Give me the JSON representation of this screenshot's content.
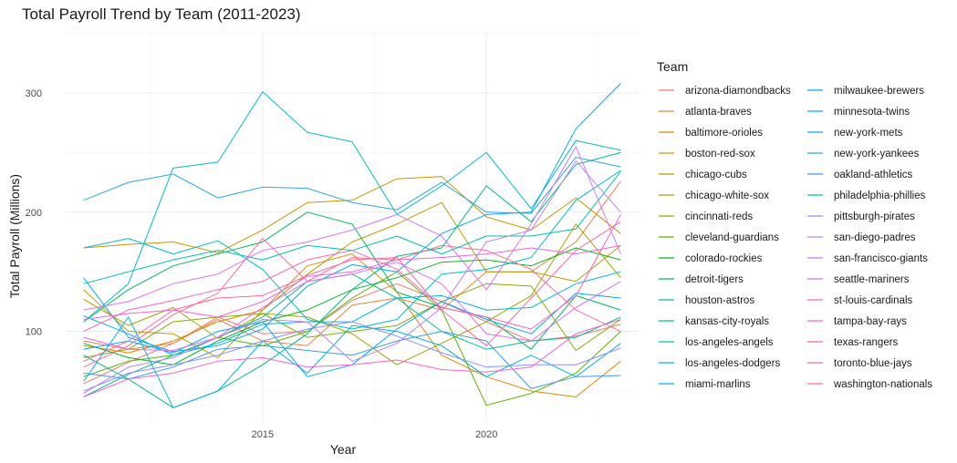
{
  "chart_data": {
    "type": "line",
    "title": "Total Payroll Trend by Team (2011-2023)",
    "xlabel": "Year",
    "ylabel": "Total Payroll (Millions)",
    "xlim": [
      2010.6,
      2023.4
    ],
    "ylim": [
      24,
      352
    ],
    "x_ticks": [
      2015,
      2020
    ],
    "y_ticks": [
      100,
      200,
      300
    ],
    "grid": true,
    "legend_title": "Team",
    "legend_position": "right",
    "x": [
      2011,
      2012,
      2013,
      2014,
      2015,
      2016,
      2017,
      2018,
      2019,
      2020,
      2021,
      2022,
      2023
    ],
    "series": [
      {
        "name": "arizona-diamondbacks",
        "color": "#F8766D",
        "values": [
          56,
          74,
          90,
          112,
          98,
          100,
          126,
          140,
          125,
          108,
          92,
          96,
          106
        ]
      },
      {
        "name": "atlanta-braves",
        "color": "#EE8045",
        "values": [
          92,
          85,
          90,
          110,
          92,
          88,
          122,
          128,
          118,
          150,
          150,
          175,
          226
        ]
      },
      {
        "name": "baltimore-orioles",
        "color": "#E08B00",
        "values": [
          88,
          82,
          92,
          108,
          118,
          155,
          165,
          133,
          80,
          62,
          50,
          45,
          75
        ]
      },
      {
        "name": "boston-red-sox",
        "color": "#CF9400",
        "values": [
          170,
          173,
          175,
          166,
          185,
          208,
          210,
          228,
          230,
          196,
          185,
          212,
          182
        ]
      },
      {
        "name": "chicago-cubs",
        "color": "#BB9D00",
        "values": [
          135,
          100,
          98,
          78,
          118,
          148,
          175,
          190,
          208,
          150,
          150,
          142,
          172
        ]
      },
      {
        "name": "chicago-white-sox",
        "color": "#A3A500",
        "values": [
          127,
          105,
          120,
          94,
          115,
          112,
          98,
          72,
          90,
          108,
          130,
          190,
          145
        ]
      },
      {
        "name": "cincinnati-reds",
        "color": "#85AD00",
        "values": [
          78,
          85,
          108,
          112,
          115,
          95,
          100,
          105,
          125,
          140,
          138,
          84,
          110
        ]
      },
      {
        "name": "cleveland-guardians",
        "color": "#5BB300",
        "values": [
          62,
          75,
          80,
          95,
          88,
          100,
          128,
          150,
          118,
          38,
          48,
          65,
          100
        ]
      },
      {
        "name": "colorado-rockies",
        "color": "#00B81F",
        "values": [
          90,
          78,
          72,
          92,
          108,
          118,
          135,
          145,
          158,
          160,
          155,
          170,
          160
        ]
      },
      {
        "name": "detroit-tigers",
        "color": "#00BC56",
        "values": [
          108,
          135,
          155,
          165,
          175,
          200,
          190,
          133,
          120,
          112,
          85,
          130,
          118
        ]
      },
      {
        "name": "houston-astros",
        "color": "#00BF7D",
        "values": [
          80,
          60,
          36,
          50,
          72,
          98,
          135,
          163,
          170,
          222,
          192,
          240,
          250
        ]
      },
      {
        "name": "kansas-city-royals",
        "color": "#00C19A",
        "values": [
          45,
          64,
          80,
          95,
          112,
          142,
          148,
          128,
          100,
          85,
          92,
          95,
          112
        ]
      },
      {
        "name": "los-angeles-angels",
        "color": "#00C0B5",
        "values": [
          140,
          150,
          160,
          168,
          160,
          172,
          168,
          180,
          165,
          180,
          180,
          186,
          234
        ]
      },
      {
        "name": "los-angeles-dodgers",
        "color": "#00BCD0",
        "values": [
          108,
          140,
          237,
          242,
          301,
          267,
          259,
          198,
          222,
          250,
          203,
          260,
          252
        ]
      },
      {
        "name": "miami-marlins",
        "color": "#00B4E5",
        "values": [
          58,
          112,
          36,
          50,
          92,
          65,
          105,
          100,
          88,
          62,
          80,
          62,
          90
        ]
      },
      {
        "name": "milwaukee-brewers",
        "color": "#00A9FF",
        "values": [
          85,
          92,
          82,
          100,
          108,
          62,
          72,
          102,
          125,
          110,
          98,
          132,
          128
        ]
      },
      {
        "name": "minnesota-twins",
        "color": "#00B5EE",
        "values": [
          113,
          98,
          80,
          90,
          106,
          108,
          108,
          128,
          130,
          118,
          120,
          140,
          150
        ]
      },
      {
        "name": "new-york-mets",
        "color": "#00A9FF",
        "values": [
          145,
          95,
          83,
          88,
          102,
          138,
          156,
          150,
          182,
          198,
          200,
          270,
          308
        ]
      },
      {
        "name": "new-york-yankees",
        "color": "#2EA7E8",
        "values": [
          210,
          225,
          232,
          212,
          221,
          220,
          208,
          202,
          225,
          200,
          199,
          246,
          238
        ]
      },
      {
        "name": "oakland-athletics",
        "color": "#3D9BF4",
        "values": [
          65,
          60,
          70,
          85,
          88,
          84,
          80,
          92,
          100,
          92,
          52,
          62,
          63
        ]
      },
      {
        "name": "philadelphia-phillies",
        "color": "#00BFC4",
        "values": [
          170,
          178,
          165,
          176,
          152,
          110,
          102,
          110,
          148,
          152,
          162,
          210,
          235
        ]
      },
      {
        "name": "pittsburgh-pirates",
        "color": "#8E8FFF",
        "values": [
          50,
          65,
          72,
          80,
          92,
          102,
          108,
          96,
          82,
          70,
          72,
          72,
          86
        ]
      },
      {
        "name": "san-diego-padres",
        "color": "#B983FF",
        "values": [
          48,
          70,
          78,
          95,
          110,
          108,
          75,
          90,
          120,
          175,
          185,
          243,
          200
        ]
      },
      {
        "name": "san-francisco-giants",
        "color": "#D575FE",
        "values": [
          118,
          125,
          140,
          148,
          168,
          175,
          185,
          198,
          180,
          135,
          190,
          255,
          165
        ]
      },
      {
        "name": "seattle-mariners",
        "color": "#E76BF3",
        "values": [
          95,
          85,
          84,
          95,
          120,
          142,
          148,
          158,
          140,
          98,
          92,
          120,
          142
        ]
      },
      {
        "name": "st-louis-cardinals",
        "color": "#F464E2",
        "values": [
          110,
          115,
          118,
          112,
          125,
          146,
          150,
          160,
          162,
          165,
          170,
          165,
          172
        ]
      },
      {
        "name": "tampa-bay-rays",
        "color": "#FB61D7",
        "values": [
          45,
          60,
          65,
          75,
          78,
          70,
          72,
          76,
          68,
          66,
          70,
          98,
          110
        ]
      },
      {
        "name": "texas-rangers",
        "color": "#FF62BC",
        "values": [
          100,
          118,
          126,
          135,
          142,
          160,
          168,
          152,
          120,
          112,
          102,
          130,
          198
        ]
      },
      {
        "name": "toronto-blue-jays",
        "color": "#FF67A4",
        "values": [
          75,
          92,
          118,
          128,
          130,
          147,
          160,
          162,
          118,
          88,
          128,
          168,
          192
        ]
      },
      {
        "name": "washington-nationals",
        "color": "#FF6C91",
        "values": [
          70,
          88,
          114,
          132,
          178,
          142,
          162,
          160,
          172,
          168,
          152,
          118,
          100
        ]
      }
    ]
  }
}
